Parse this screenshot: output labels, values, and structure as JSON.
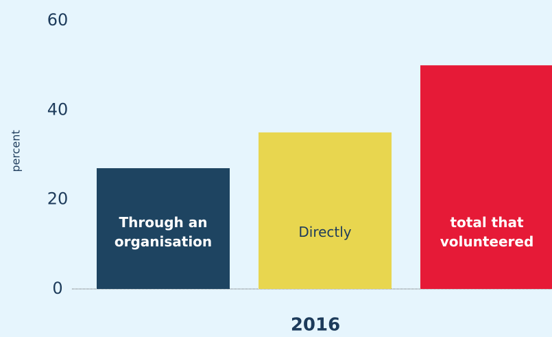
{
  "chart_data": {
    "type": "bar",
    "categories": [
      "2016"
    ],
    "y_label": "percent",
    "series": [
      {
        "name": "Through an organisation",
        "color": "#1e4461",
        "values": [
          27
        ]
      },
      {
        "name": "Directly",
        "color": "#e8d64f",
        "values": [
          35
        ]
      },
      {
        "name": "total that volunteered",
        "color": "#e61a37",
        "values": [
          50
        ]
      }
    ],
    "ylim": [
      0,
      60
    ],
    "yticks": [
      0,
      20,
      40,
      60
    ],
    "grid": false
  }
}
